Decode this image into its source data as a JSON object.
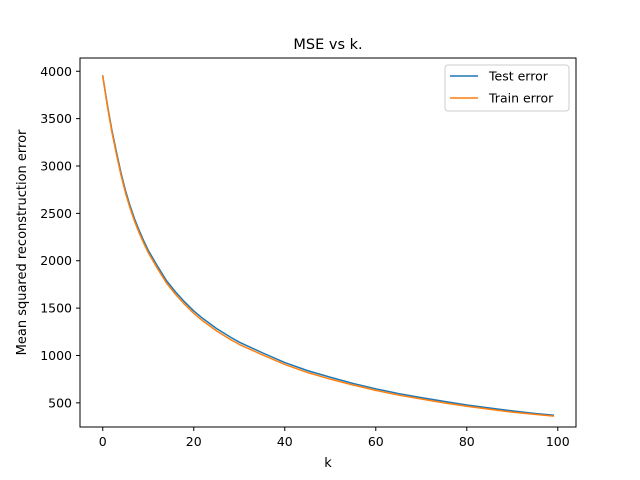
{
  "chart_data": {
    "type": "line",
    "title": "MSE vs k.",
    "xlabel": "k",
    "ylabel": "Mean squared reconstruction error",
    "xlim": [
      -5,
      104
    ],
    "ylim": [
      245,
      4140
    ],
    "xticks": [
      0,
      20,
      40,
      60,
      80,
      100
    ],
    "yticks": [
      500,
      1000,
      1500,
      2000,
      2500,
      3000,
      3500,
      4000
    ],
    "grid": false,
    "legend_position": "top-right",
    "x": [
      0,
      1,
      2,
      3,
      4,
      5,
      6,
      7,
      8,
      9,
      10,
      12,
      14,
      16,
      18,
      20,
      22,
      25,
      28,
      30,
      35,
      40,
      45,
      50,
      55,
      60,
      65,
      70,
      75,
      80,
      85,
      90,
      95,
      99
    ],
    "series": [
      {
        "name": "Test error",
        "color": "#1f77b4",
        "values": [
          3950,
          3650,
          3380,
          3150,
          2930,
          2740,
          2580,
          2440,
          2320,
          2210,
          2110,
          1945,
          1790,
          1670,
          1565,
          1470,
          1390,
          1285,
          1195,
          1140,
          1030,
          925,
          840,
          770,
          705,
          648,
          598,
          555,
          515,
          478,
          445,
          415,
          388,
          370
        ]
      },
      {
        "name": "Train error",
        "color": "#ff7f0e",
        "values": [
          3950,
          3635,
          3360,
          3125,
          2905,
          2715,
          2555,
          2415,
          2295,
          2185,
          2085,
          1920,
          1765,
          1645,
          1540,
          1445,
          1365,
          1260,
          1170,
          1117,
          1008,
          905,
          820,
          750,
          688,
          632,
          582,
          540,
          500,
          464,
          432,
          402,
          378,
          360
        ]
      }
    ]
  }
}
